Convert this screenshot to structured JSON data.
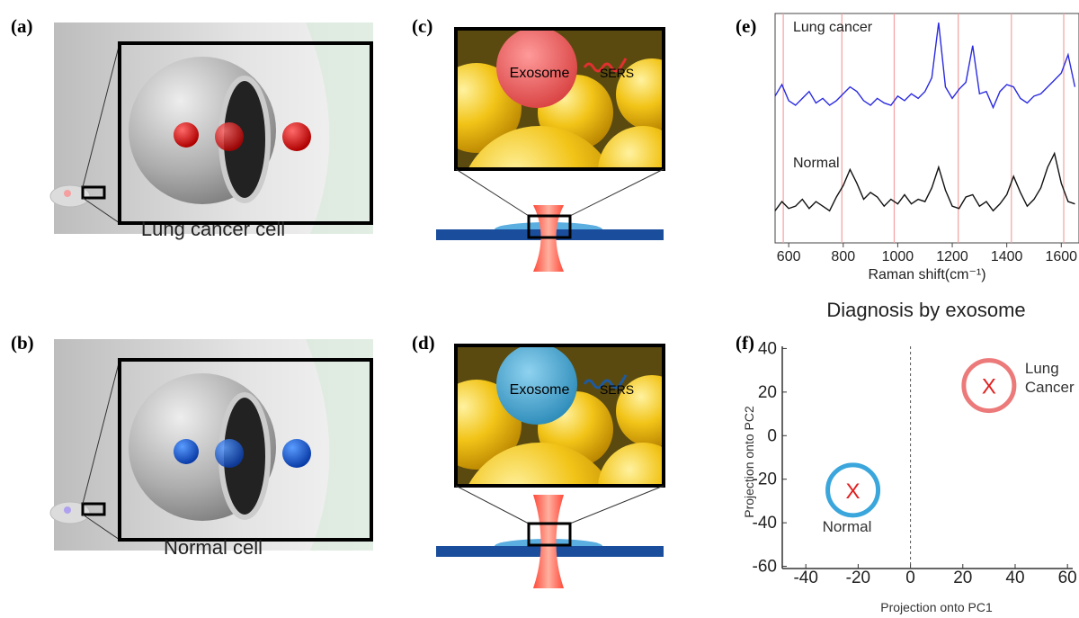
{
  "panels": {
    "a": {
      "label": "(a)",
      "caption": "Lung cancer cell"
    },
    "b": {
      "label": "(b)",
      "caption": "Normal cell"
    },
    "c": {
      "label": "(c)",
      "exosome": "Exosome",
      "sers": "SERS"
    },
    "d": {
      "label": "(d)",
      "exosome": "Exosome",
      "sers": "SERS"
    },
    "e": {
      "label": "(e)"
    },
    "f": {
      "label": "(f)"
    }
  },
  "heading": "Diagnosis by exosome",
  "chart_data": [
    {
      "type": "line",
      "xlabel": "Raman shift(cm⁻¹)",
      "x": [
        550,
        575,
        600,
        625,
        650,
        675,
        700,
        725,
        750,
        775,
        800,
        825,
        850,
        875,
        900,
        925,
        950,
        975,
        1000,
        1025,
        1050,
        1075,
        1100,
        1125,
        1150,
        1175,
        1200,
        1225,
        1250,
        1275,
        1300,
        1325,
        1350,
        1375,
        1400,
        1425,
        1450,
        1475,
        1500,
        1525,
        1550,
        1575,
        1600,
        1625,
        1650
      ],
      "xlim": [
        550,
        1665
      ],
      "xticks": [
        600,
        800,
        1000,
        1200,
        1400,
        1600
      ],
      "ylim": [
        0,
        10
      ],
      "reference_lines": [
        580,
        795,
        987,
        1222,
        1417,
        1609
      ],
      "reference_color": "#f4a0a0",
      "series": [
        {
          "name": "Lung cancer",
          "color": "#2a2ae0",
          "values": [
            6.4,
            6.9,
            6.2,
            6.0,
            6.3,
            6.6,
            6.1,
            6.3,
            6.0,
            6.2,
            6.5,
            6.8,
            6.6,
            6.2,
            6.0,
            6.3,
            6.1,
            6.0,
            6.4,
            6.2,
            6.5,
            6.3,
            6.6,
            7.2,
            9.6,
            6.8,
            6.3,
            6.7,
            7.0,
            8.6,
            6.5,
            6.6,
            5.9,
            6.6,
            6.9,
            6.8,
            6.3,
            6.1,
            6.4,
            6.5,
            6.8,
            7.1,
            7.4,
            8.2,
            6.8
          ]
        },
        {
          "name": "Normal",
          "color": "#111111",
          "values": [
            1.4,
            1.8,
            1.5,
            1.6,
            1.9,
            1.5,
            1.8,
            1.6,
            1.4,
            2.0,
            2.5,
            3.2,
            2.6,
            1.9,
            2.2,
            2.0,
            1.6,
            1.9,
            1.7,
            2.1,
            1.7,
            1.9,
            1.8,
            2.4,
            3.3,
            2.3,
            1.6,
            1.5,
            2.0,
            2.1,
            1.6,
            1.8,
            1.4,
            1.7,
            2.1,
            2.9,
            2.2,
            1.6,
            1.9,
            2.4,
            3.3,
            3.9,
            2.6,
            1.8,
            1.7
          ]
        }
      ]
    },
    {
      "type": "scatter",
      "xlabel": "Projection onto PC1",
      "ylabel": "Projection onto PC2",
      "xlim": [
        -49,
        62
      ],
      "ylim": [
        -61,
        41
      ],
      "xticks": [
        -40,
        -20,
        0,
        20,
        40,
        60
      ],
      "yticks": [
        40,
        20,
        0,
        -20,
        -40,
        -60
      ],
      "divider_x": 0,
      "marker": "X",
      "marker_color": "#e02020",
      "series": [
        {
          "name": "Normal",
          "color": "#3aa6dc",
          "x": [
            -22
          ],
          "values": [
            -25
          ]
        },
        {
          "name": "Lung Cancer",
          "color": "#ec7a7a",
          "x": [
            30
          ],
          "values": [
            23
          ]
        }
      ]
    }
  ]
}
